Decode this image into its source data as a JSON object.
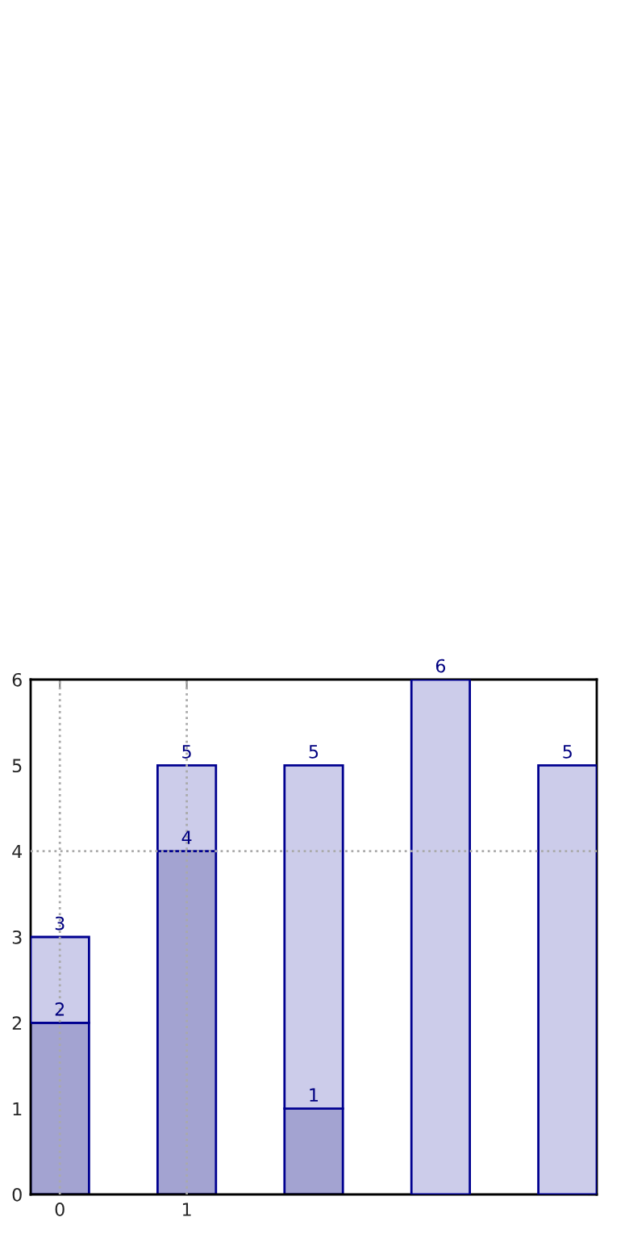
{
  "chart_data": {
    "type": "bar",
    "x": [
      0,
      1,
      2,
      3,
      4
    ],
    "xlim": [
      -0.23,
      4.23
    ],
    "xticks": [
      0,
      1
    ],
    "ylim": [
      0,
      6
    ],
    "yticks": [
      0,
      1,
      2,
      3,
      4,
      5,
      6
    ],
    "stacked": true,
    "series": [
      {
        "color": "#a3a3d1",
        "values": [
          2,
          4,
          1,
          null,
          null
        ],
        "value_labels": [
          "2",
          "4",
          "1",
          null,
          null
        ]
      },
      {
        "color": "#ccccea",
        "values": [
          1,
          1,
          4,
          6,
          5
        ]
      }
    ],
    "totals": [
      "3",
      "5",
      "5",
      "6",
      "5"
    ],
    "ref_lines": [
      {
        "axis": "x",
        "value": 0,
        "color": "#aaaaaa",
        "line_style": "dotted"
      },
      {
        "axis": "x",
        "value": 1,
        "color": "#aaaaaa",
        "line_style": "dotted"
      },
      {
        "axis": "y",
        "value": 4,
        "color": "#aaaaaa",
        "line_style": "dotted"
      }
    ]
  }
}
